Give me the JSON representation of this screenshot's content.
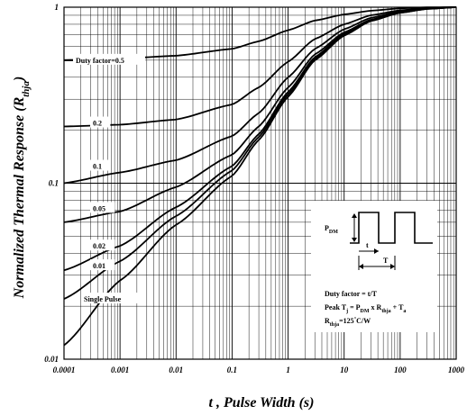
{
  "chart_data": {
    "type": "line",
    "x_scale": "log",
    "y_scale": "log",
    "xlim": [
      0.0001,
      1000
    ],
    "ylim": [
      0.01,
      1
    ],
    "grid": true,
    "xlabel": "t , Pulse Width (s)",
    "ylabel_main": "Normalized Thermal Response (R",
    "ylabel_sub": "thja",
    "ylabel_end": ")",
    "x_ticks": [
      {
        "value": 0.0001,
        "label": "0.0001"
      },
      {
        "value": 0.001,
        "label": "0.001"
      },
      {
        "value": 0.01,
        "label": "0.01"
      },
      {
        "value": 0.1,
        "label": "0.1"
      },
      {
        "value": 1,
        "label": "1"
      },
      {
        "value": 10,
        "label": "10"
      },
      {
        "value": 100,
        "label": "100"
      },
      {
        "value": 1000,
        "label": "1000"
      }
    ],
    "y_ticks": [
      {
        "value": 0.01,
        "label": "0.01"
      },
      {
        "value": 0.1,
        "label": "0.1"
      },
      {
        "value": 1,
        "label": "1"
      }
    ],
    "series": [
      {
        "name": "Duty factor=0.5",
        "points": [
          [
            0.0001,
            0.5
          ],
          [
            0.001,
            0.51
          ],
          [
            0.01,
            0.53
          ],
          [
            0.1,
            0.58
          ],
          [
            0.3,
            0.64
          ],
          [
            1,
            0.74
          ],
          [
            3,
            0.84
          ],
          [
            10,
            0.91
          ],
          [
            30,
            0.955
          ],
          [
            100,
            0.985
          ],
          [
            300,
            0.998
          ],
          [
            1000,
            1.0
          ]
        ]
      },
      {
        "name": "0.2",
        "points": [
          [
            0.0001,
            0.21
          ],
          [
            0.001,
            0.215
          ],
          [
            0.01,
            0.23
          ],
          [
            0.1,
            0.28
          ],
          [
            0.3,
            0.35
          ],
          [
            1,
            0.49
          ],
          [
            3,
            0.66
          ],
          [
            10,
            0.8
          ],
          [
            30,
            0.9
          ],
          [
            100,
            0.96
          ],
          [
            300,
            0.99
          ],
          [
            1000,
            1.0
          ]
        ]
      },
      {
        "name": "0.1",
        "points": [
          [
            0.0001,
            0.1
          ],
          [
            0.001,
            0.115
          ],
          [
            0.01,
            0.135
          ],
          [
            0.1,
            0.185
          ],
          [
            0.3,
            0.25
          ],
          [
            1,
            0.4
          ],
          [
            3,
            0.58
          ],
          [
            10,
            0.75
          ],
          [
            30,
            0.87
          ],
          [
            100,
            0.95
          ],
          [
            300,
            0.985
          ],
          [
            1000,
            1.0
          ]
        ]
      },
      {
        "name": "0.05",
        "points": [
          [
            0.0001,
            0.06
          ],
          [
            0.001,
            0.069
          ],
          [
            0.01,
            0.095
          ],
          [
            0.1,
            0.145
          ],
          [
            0.3,
            0.21
          ],
          [
            1,
            0.35
          ],
          [
            3,
            0.54
          ],
          [
            10,
            0.72
          ],
          [
            30,
            0.85
          ],
          [
            100,
            0.94
          ],
          [
            300,
            0.98
          ],
          [
            1000,
            1.0
          ]
        ]
      },
      {
        "name": "0.02",
        "points": [
          [
            0.0001,
            0.032
          ],
          [
            0.001,
            0.044
          ],
          [
            0.01,
            0.073
          ],
          [
            0.1,
            0.125
          ],
          [
            0.3,
            0.19
          ],
          [
            1,
            0.33
          ],
          [
            3,
            0.52
          ],
          [
            10,
            0.71
          ],
          [
            30,
            0.845
          ],
          [
            100,
            0.935
          ],
          [
            300,
            0.98
          ],
          [
            1000,
            1.0
          ]
        ]
      },
      {
        "name": "0.01",
        "points": [
          [
            0.0001,
            0.022
          ],
          [
            0.001,
            0.036
          ],
          [
            0.01,
            0.065
          ],
          [
            0.1,
            0.118
          ],
          [
            0.3,
            0.183
          ],
          [
            1,
            0.32
          ],
          [
            3,
            0.51
          ],
          [
            10,
            0.7
          ],
          [
            30,
            0.84
          ],
          [
            100,
            0.93
          ],
          [
            300,
            0.978
          ],
          [
            1000,
            1.0
          ]
        ]
      },
      {
        "name": "Single Pulse",
        "points": [
          [
            0.0001,
            0.012
          ],
          [
            0.001,
            0.028
          ],
          [
            0.01,
            0.058
          ],
          [
            0.1,
            0.11
          ],
          [
            0.3,
            0.176
          ],
          [
            1,
            0.31
          ],
          [
            3,
            0.5
          ],
          [
            10,
            0.69
          ],
          [
            30,
            0.835
          ],
          [
            100,
            0.93
          ],
          [
            300,
            0.978
          ],
          [
            1000,
            1.0
          ]
        ]
      }
    ],
    "series_label_y": [
      0.5,
      0.22,
      0.125,
      0.072,
      0.044,
      0.034,
      0.022
    ]
  },
  "inset": {
    "pdm_main": "P",
    "pdm_sub": "DM",
    "t_label": "t",
    "T_label": "T",
    "line1": "Duty factor = t/T",
    "line2_a": "Peak T",
    "line2_b": "j",
    "line2_c": " = P",
    "line2_d": "DM",
    "line2_e": " x R",
    "line2_f": "thja",
    "line2_g": " + T",
    "line2_h": "a",
    "line3_a": "R",
    "line3_b": "thja",
    "line3_c": "=125",
    "line3_d": "°",
    "line3_e": "C/W"
  }
}
